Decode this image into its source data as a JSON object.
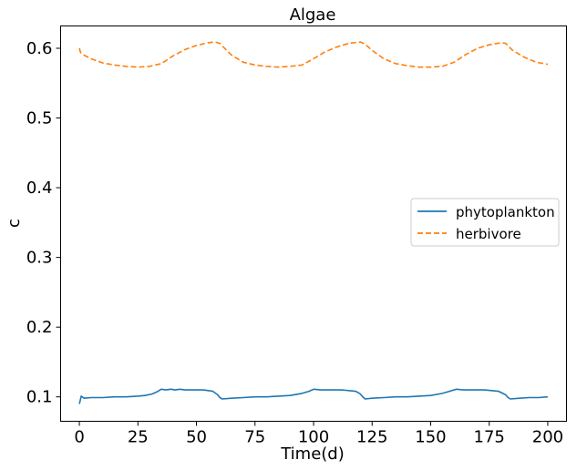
{
  "chart_data": {
    "type": "line",
    "title": "Algae",
    "xlabel": "Time(d)",
    "ylabel": "c",
    "xlim": [
      -8,
      208
    ],
    "ylim": [
      0.065,
      0.632
    ],
    "xticks": [
      0,
      25,
      50,
      75,
      100,
      125,
      150,
      175,
      200
    ],
    "yticks": [
      0.1,
      0.2,
      0.3,
      0.4,
      0.5,
      0.6
    ],
    "xtick_labels": [
      "0",
      "25",
      "50",
      "75",
      "100",
      "125",
      "150",
      "175",
      "200"
    ],
    "ytick_labels": [
      "0.1",
      "0.2",
      "0.3",
      "0.4",
      "0.5",
      "0.6"
    ],
    "grid": false,
    "legend_position": "center-right",
    "series": [
      {
        "name": "phytoplankton",
        "color": "#1f77b4",
        "style": "solid",
        "x": [
          0,
          0.8,
          2,
          5,
          10,
          15,
          20,
          25,
          28,
          31,
          33,
          35,
          37,
          39,
          41,
          43,
          45,
          47,
          49,
          51,
          53,
          55,
          57,
          59,
          60,
          61,
          65,
          70,
          75,
          80,
          85,
          90,
          95,
          98,
          100,
          103,
          106,
          109,
          112,
          115,
          118,
          120,
          121,
          122,
          125,
          130,
          135,
          140,
          145,
          150,
          155,
          158,
          161,
          164,
          167,
          170,
          173,
          176,
          179,
          182,
          183,
          184,
          188,
          192,
          196,
          200
        ],
        "y": [
          0.09,
          0.101,
          0.098,
          0.099,
          0.099,
          0.1,
          0.1,
          0.101,
          0.102,
          0.104,
          0.107,
          0.111,
          0.11,
          0.111,
          0.11,
          0.111,
          0.11,
          0.11,
          0.11,
          0.11,
          0.11,
          0.109,
          0.108,
          0.103,
          0.099,
          0.097,
          0.098,
          0.099,
          0.1,
          0.1,
          0.101,
          0.102,
          0.105,
          0.108,
          0.111,
          0.11,
          0.11,
          0.11,
          0.11,
          0.109,
          0.108,
          0.104,
          0.1,
          0.097,
          0.098,
          0.099,
          0.1,
          0.1,
          0.101,
          0.102,
          0.105,
          0.108,
          0.111,
          0.11,
          0.11,
          0.11,
          0.11,
          0.109,
          0.108,
          0.103,
          0.099,
          0.097,
          0.098,
          0.099,
          0.099,
          0.1
        ]
      },
      {
        "name": "herbivore",
        "color": "#ff7f0e",
        "style": "dashed",
        "x": [
          0,
          0.5,
          2,
          5,
          10,
          15,
          20,
          25,
          30,
          35,
          40,
          45,
          50,
          55,
          58,
          60,
          62,
          65,
          70,
          75,
          80,
          85,
          90,
          95,
          100,
          105,
          110,
          115,
          120,
          122,
          125,
          130,
          135,
          140,
          145,
          150,
          155,
          160,
          165,
          170,
          175,
          180,
          182,
          185,
          190,
          195,
          200
        ],
        "y": [
          0.6,
          0.594,
          0.59,
          0.585,
          0.579,
          0.576,
          0.574,
          0.573,
          0.574,
          0.578,
          0.589,
          0.598,
          0.604,
          0.608,
          0.609,
          0.607,
          0.6,
          0.59,
          0.58,
          0.576,
          0.574,
          0.573,
          0.574,
          0.576,
          0.585,
          0.595,
          0.602,
          0.607,
          0.609,
          0.606,
          0.597,
          0.585,
          0.578,
          0.575,
          0.573,
          0.573,
          0.574,
          0.58,
          0.591,
          0.6,
          0.605,
          0.608,
          0.607,
          0.597,
          0.587,
          0.58,
          0.577
        ]
      }
    ]
  }
}
